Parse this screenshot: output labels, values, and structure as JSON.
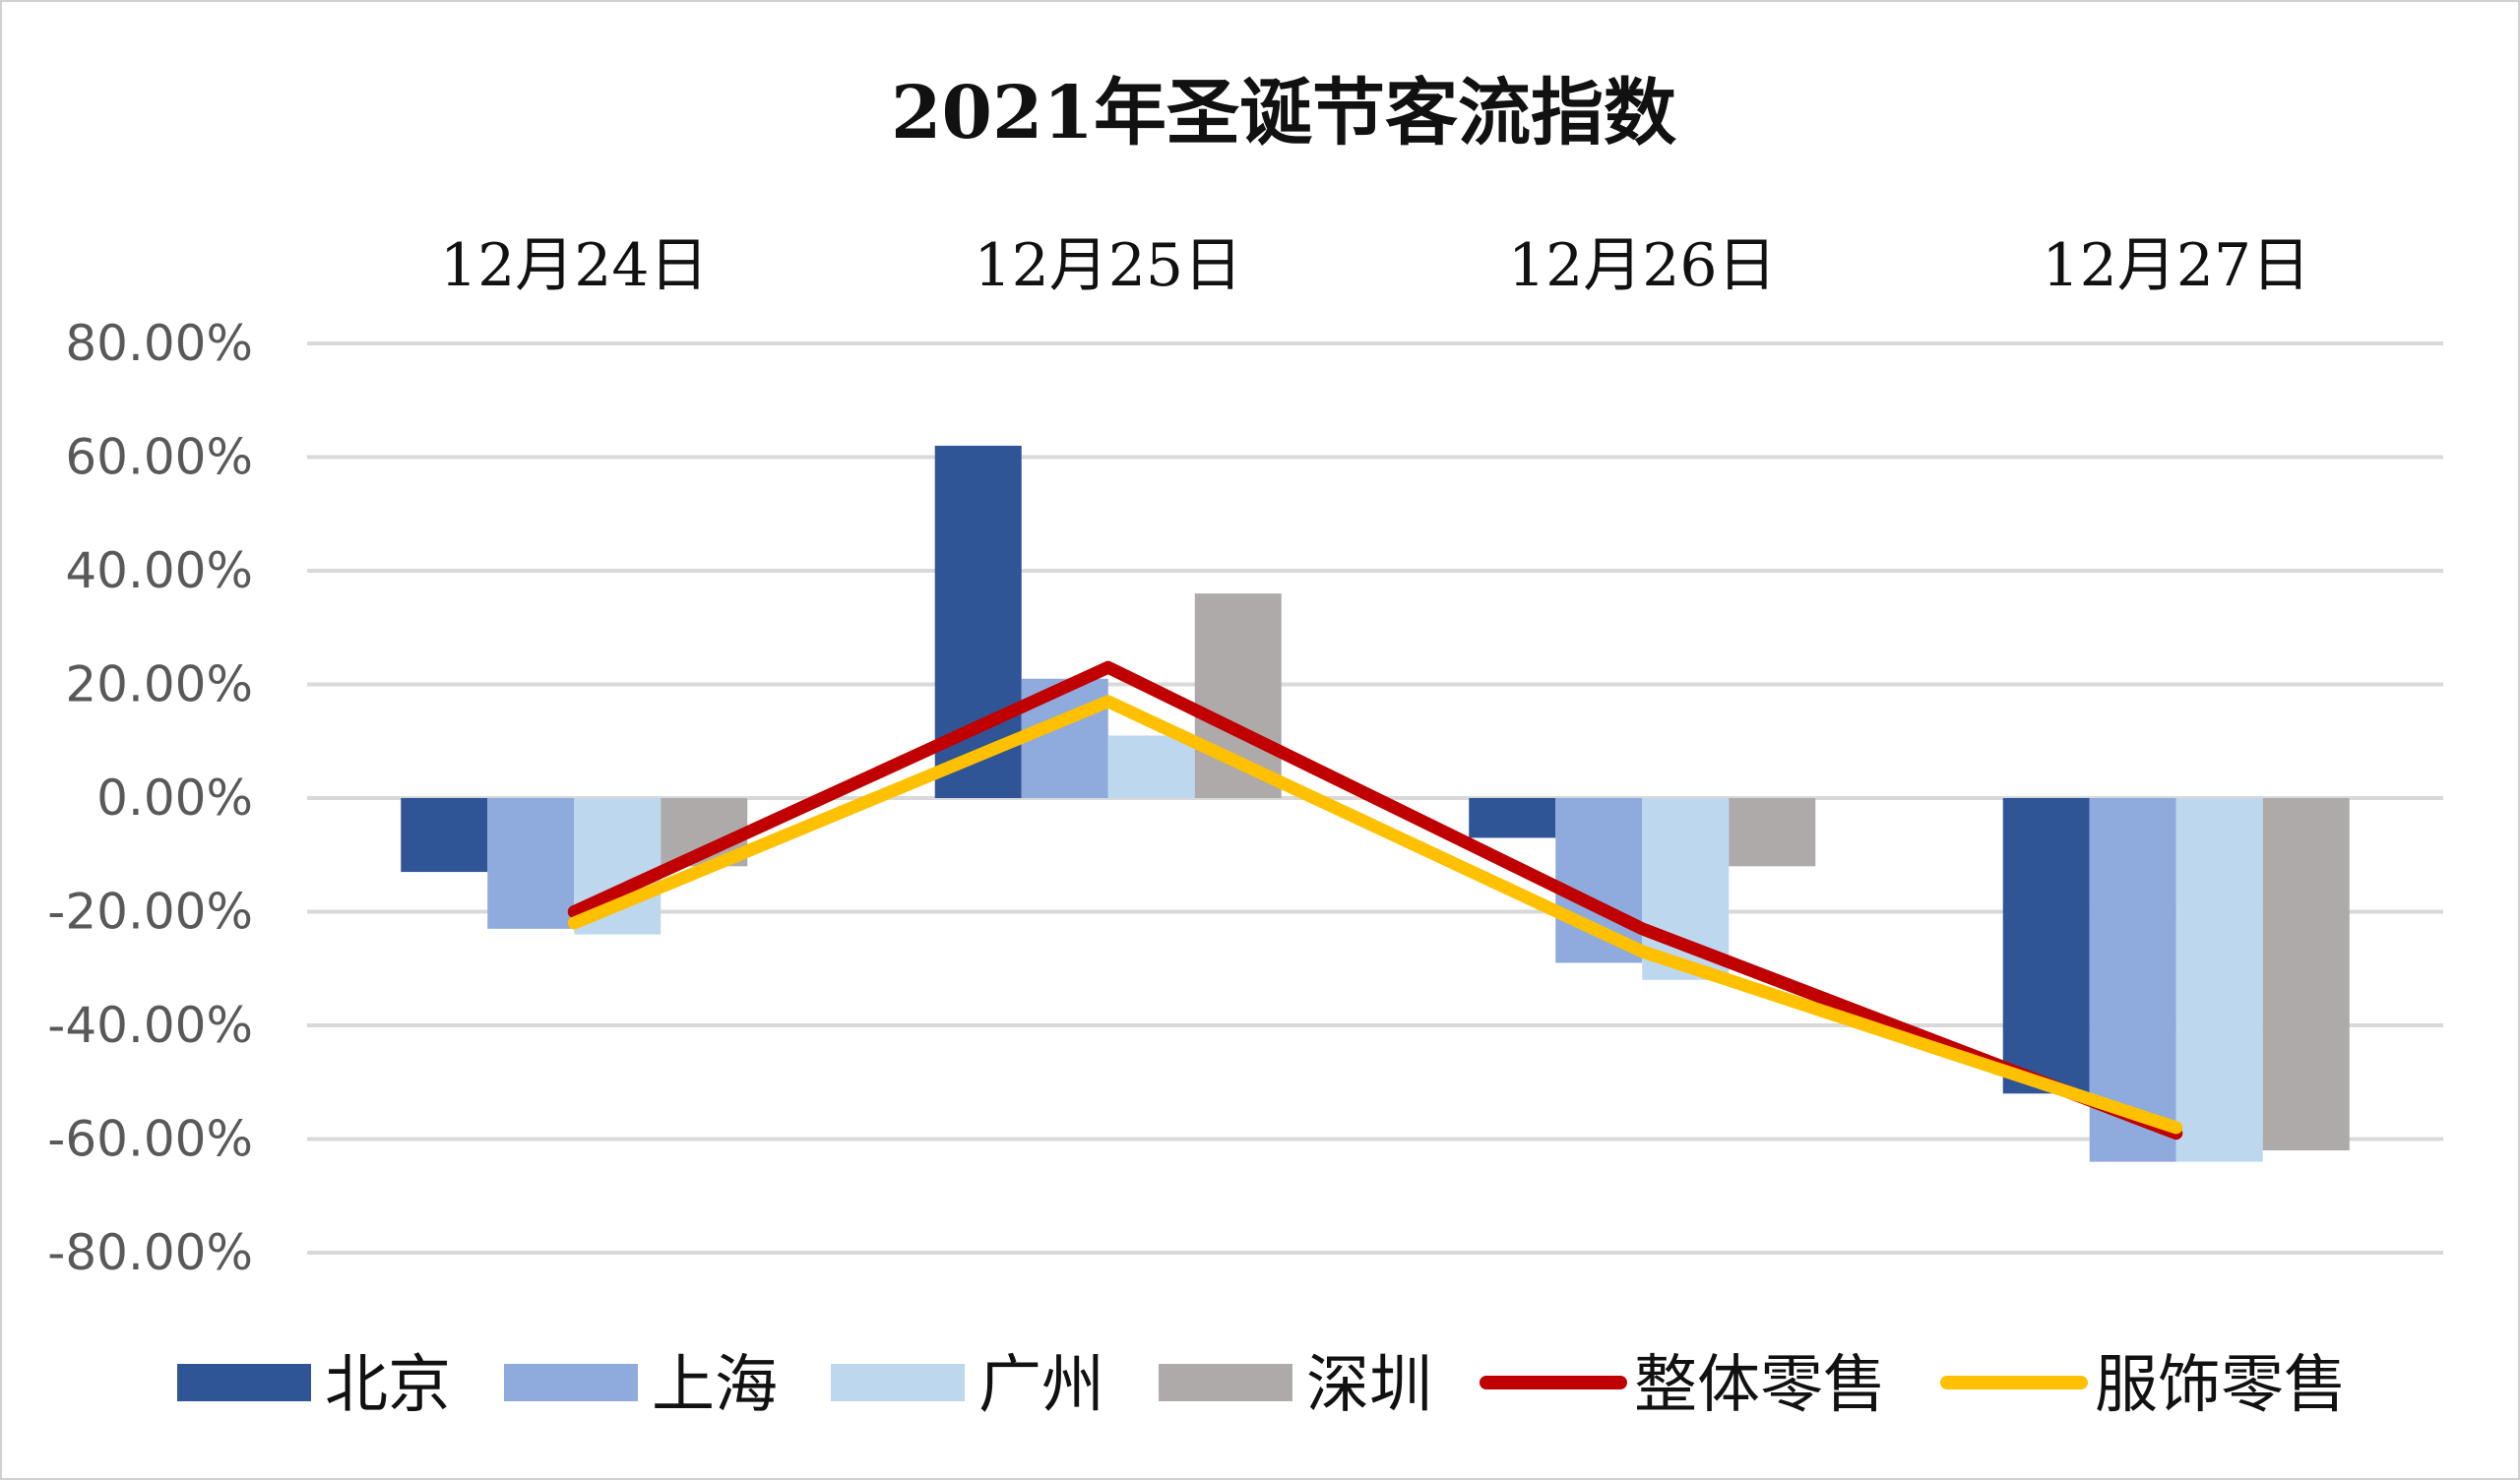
{
  "chart_data": {
    "type": "bar",
    "title": "2021年圣诞节客流指数",
    "categories": [
      "12月24日",
      "12月25日",
      "12月26日",
      "12月27日"
    ],
    "ylim": [
      -0.8,
      0.8
    ],
    "yticks": [
      0.8,
      0.6,
      0.4,
      0.2,
      0.0,
      -0.2,
      -0.4,
      -0.6,
      -0.8
    ],
    "ytick_labels": [
      "80.00%",
      "60.00%",
      "40.00%",
      "20.00%",
      "0.00%",
      "-20.00%",
      "-40.00%",
      "-60.00%",
      "-80.00%"
    ],
    "grid": true,
    "legend_position": "bottom",
    "series": [
      {
        "name": "北京",
        "kind": "bar",
        "color": "#2F5597",
        "values": [
          -0.13,
          0.62,
          -0.07,
          -0.52
        ]
      },
      {
        "name": "上海",
        "kind": "bar",
        "color": "#8FAADC",
        "values": [
          -0.23,
          0.21,
          -0.29,
          -0.64
        ]
      },
      {
        "name": "广州",
        "kind": "bar",
        "color": "#BDD7EE",
        "values": [
          -0.24,
          0.11,
          -0.32,
          -0.64
        ]
      },
      {
        "name": "深圳",
        "kind": "bar",
        "color": "#AEAAAA",
        "values": [
          -0.12,
          0.36,
          -0.12,
          -0.62
        ]
      },
      {
        "name": "整体零售",
        "kind": "line",
        "color": "#C00000",
        "values": [
          -0.2,
          0.23,
          -0.23,
          -0.59
        ]
      },
      {
        "name": "服饰零售",
        "kind": "line",
        "color": "#FFC000",
        "values": [
          -0.22,
          0.17,
          -0.27,
          -0.58
        ]
      }
    ]
  }
}
